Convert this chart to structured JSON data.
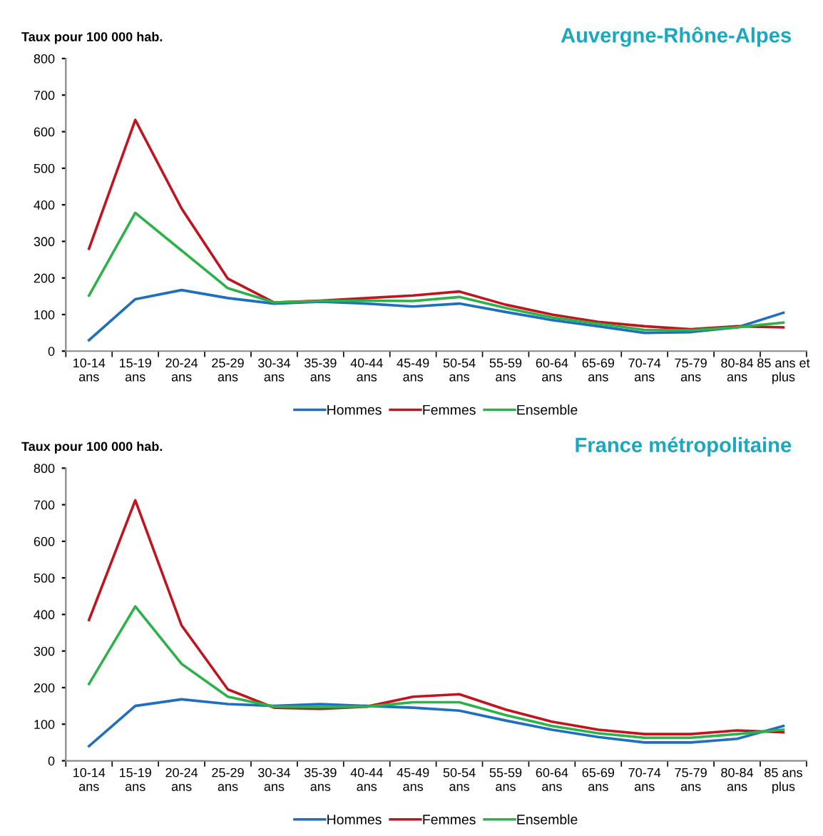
{
  "chart_data": [
    {
      "type": "line",
      "title": "Auvergne-Rhône-Alpes",
      "ylabel": "Taux pour 100 000 hab.",
      "categories": [
        "10-14\nans",
        "15-19\nans",
        "20-24\nans",
        "25-29\nans",
        "30-34\nans",
        "35-39\nans",
        "40-44\nans",
        "45-49\nans",
        "50-54\nans",
        "55-59\nans",
        "60-64\nans",
        "65-69\nans",
        "70-74\nans",
        "75-79\nans",
        "80-84\nans",
        "85 ans et\nplus"
      ],
      "ylim": [
        0,
        800
      ],
      "yticks": [
        0,
        100,
        200,
        300,
        400,
        500,
        600,
        700,
        800
      ],
      "grid": false,
      "legend": "bottom",
      "marker": "none",
      "line_style": "solid",
      "series": [
        {
          "name": "Hommes",
          "color": "#1f6fc0",
          "values": [
            30,
            142,
            167,
            145,
            130,
            135,
            130,
            122,
            130,
            107,
            85,
            68,
            50,
            52,
            65,
            105
          ]
        },
        {
          "name": "Femmes",
          "color": "#c0141e",
          "values": [
            280,
            632,
            390,
            198,
            133,
            138,
            145,
            152,
            163,
            127,
            100,
            80,
            68,
            60,
            68,
            65
          ]
        },
        {
          "name": "Ensemble",
          "color": "#2db24a",
          "values": [
            152,
            378,
            275,
            172,
            133,
            137,
            138,
            137,
            148,
            118,
            92,
            75,
            58,
            57,
            65,
            78
          ]
        }
      ]
    },
    {
      "type": "line",
      "title": "France métropolitaine",
      "ylabel": "Taux pour 100 000 hab.",
      "categories": [
        "10-14\nans",
        "15-19\nans",
        "20-24\nans",
        "25-29\nans",
        "30-34\nans",
        "35-39\nans",
        "40-44\nans",
        "45-49\nans",
        "50-54\nans",
        "55-59\nans",
        "60-64\nans",
        "65-69\nans",
        "70-74\nans",
        "75-79\nans",
        "80-84\nans",
        "85 ans\nplus"
      ],
      "ylim": [
        0,
        800
      ],
      "yticks": [
        0,
        100,
        200,
        300,
        400,
        500,
        600,
        700,
        800
      ],
      "grid": false,
      "legend": "bottom",
      "marker": "none",
      "line_style": "solid",
      "series": [
        {
          "name": "Hommes",
          "color": "#1f6fc0",
          "values": [
            40,
            150,
            168,
            155,
            150,
            155,
            150,
            145,
            137,
            110,
            85,
            65,
            50,
            50,
            60,
            95
          ]
        },
        {
          "name": "Femmes",
          "color": "#c0141e",
          "values": [
            385,
            712,
            370,
            195,
            145,
            142,
            148,
            175,
            182,
            140,
            107,
            85,
            73,
            73,
            83,
            78
          ]
        },
        {
          "name": "Ensemble",
          "color": "#2db24a",
          "values": [
            210,
            422,
            265,
            175,
            148,
            147,
            148,
            160,
            160,
            125,
            95,
            75,
            63,
            63,
            73,
            85
          ]
        }
      ]
    }
  ]
}
